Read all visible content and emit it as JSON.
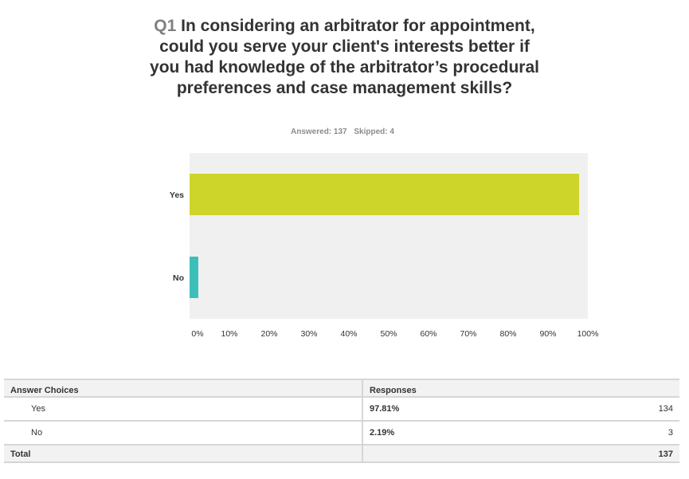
{
  "question": {
    "number": "Q1",
    "text": "In considering an arbitrator for appointment, could you serve your client's interests better if you had knowledge of the arbitrator’s procedural preferences and case management skills?"
  },
  "stats": {
    "answered": "Answered: 137",
    "skipped": "Skipped: 4"
  },
  "chart_data": {
    "type": "bar",
    "orientation": "horizontal",
    "categories": [
      "Yes",
      "No"
    ],
    "values": [
      97.81,
      2.19
    ],
    "xlim": [
      0,
      100
    ],
    "xticks": [
      "0%",
      "10%",
      "20%",
      "30%",
      "40%",
      "50%",
      "60%",
      "70%",
      "80%",
      "90%",
      "100%"
    ],
    "colors": [
      "#cdd52a",
      "#3dbfb9"
    ],
    "background": "#f0f0f0",
    "grid": false
  },
  "table": {
    "headers": [
      "Answer Choices",
      "Responses"
    ],
    "rows": [
      {
        "choice": "Yes",
        "percent": "97.81%",
        "count": "134"
      },
      {
        "choice": "No",
        "percent": "2.19%",
        "count": "3"
      }
    ],
    "total": {
      "label": "Total",
      "count": "137"
    }
  }
}
